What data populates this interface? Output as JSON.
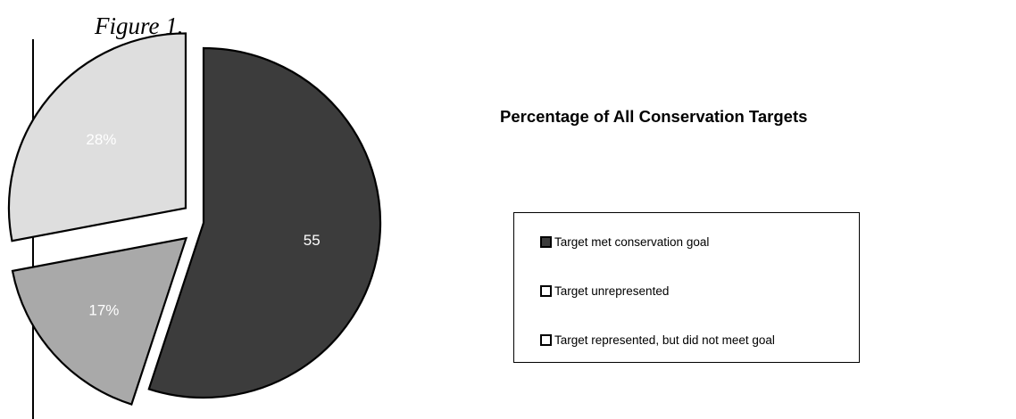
{
  "figure": {
    "caption": "Figure 1."
  },
  "chart_data": {
    "type": "pie",
    "title": "Percentage of All Conservation Targets",
    "slices": [
      {
        "label": "Target met conservation goal",
        "value": 55,
        "display_label": "55",
        "color": "#3c3c3c",
        "exploded": false
      },
      {
        "label": "Target unrepresented",
        "value": 17,
        "display_label": "17%",
        "color": "#a9a9a9",
        "exploded": true
      },
      {
        "label": "Target represented, but did not meet goal",
        "value": 28,
        "display_label": "28%",
        "color": "#dedede",
        "exploded": true
      }
    ],
    "legend": {
      "placement": "right",
      "items": [
        {
          "label": "Target met conservation goal",
          "swatch_color": "#3c3c3c"
        },
        {
          "label": "Target unrepresented",
          "swatch_color": "#ffffff"
        },
        {
          "label": "Target represented, but did not meet goal",
          "swatch_color": "#ffffff"
        }
      ]
    }
  }
}
